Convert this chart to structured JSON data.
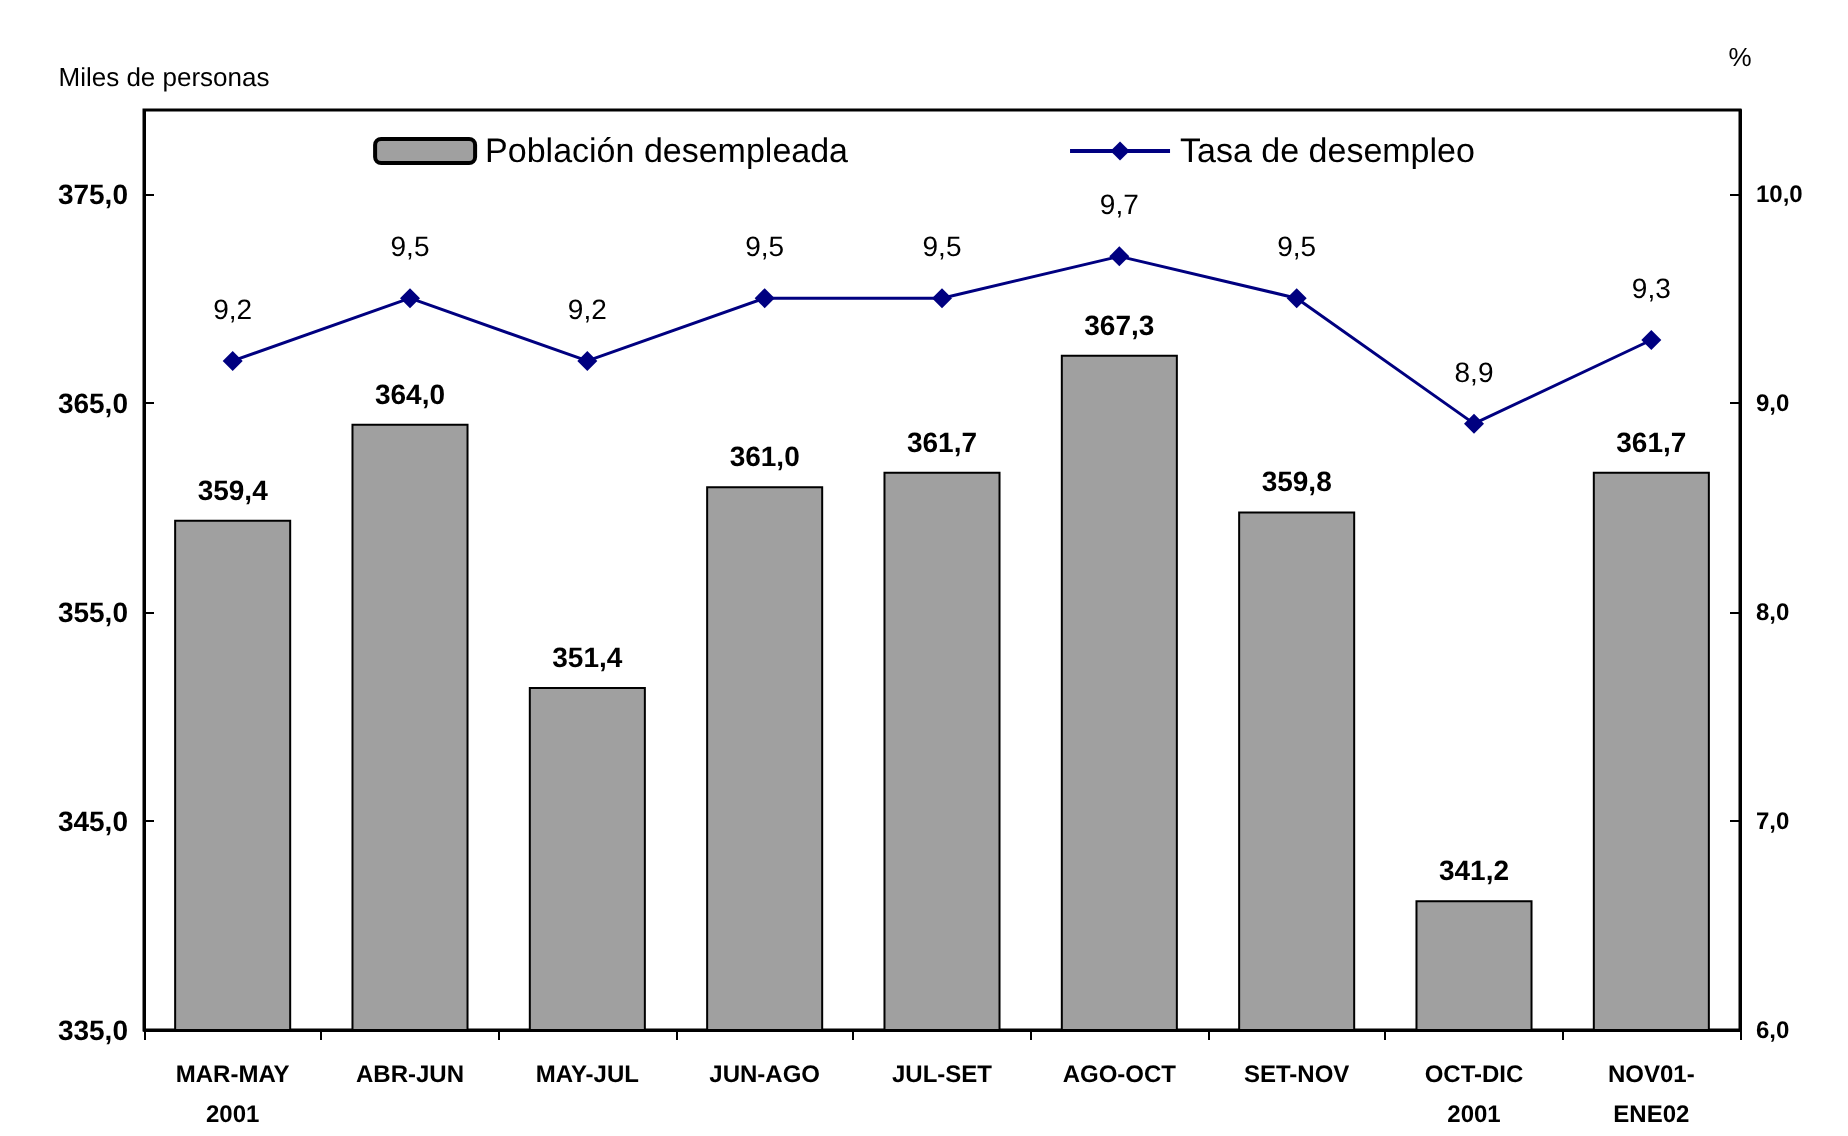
{
  "chart_data": {
    "type": "bar",
    "ylabel": "Miles de personas",
    "y2label": "%",
    "categories": [
      "MAR-MAY\n2001",
      "ABR-JUN",
      "MAY-JUL",
      "JUN-AGO",
      "JUL-SET",
      "AGO-OCT",
      "SET-NOV",
      "OCT-DIC\n2001",
      "NOV01-\nENE02"
    ],
    "series": [
      {
        "name": "Población desempleada",
        "color": "#a0a0a0",
        "values": [
          359.4,
          364.0,
          351.4,
          361.0,
          361.7,
          367.3,
          359.8,
          341.2,
          361.7
        ],
        "value_labels": [
          "359,4",
          "364,0",
          "351,4",
          "361,0",
          "361,7",
          "367,3",
          "359,8",
          "341,2",
          "361,7"
        ]
      },
      {
        "name": "Tasa de desempleo",
        "type": "line",
        "axis": "y2",
        "color": "#000080",
        "values": [
          9.2,
          9.5,
          9.2,
          9.5,
          9.5,
          9.7,
          9.5,
          8.9,
          9.3
        ],
        "value_labels": [
          "9,2",
          "9,5",
          "9,2",
          "9,5",
          "9,5",
          "9,7",
          "9,5",
          "8,9",
          "9,3"
        ]
      }
    ],
    "ylim": [
      335,
      379
    ],
    "yticks": [
      {
        "value": 335,
        "label": "335,0"
      },
      {
        "value": 345,
        "label": "345,0"
      },
      {
        "value": 355,
        "label": "355,0"
      },
      {
        "value": 365,
        "label": "365,0"
      },
      {
        "value": 375,
        "label": "375,0"
      }
    ],
    "y2lim": [
      6,
      10.4
    ],
    "y2ticks": [
      {
        "value": 6,
        "label": "6,0"
      },
      {
        "value": 7,
        "label": "7,0"
      },
      {
        "value": 8,
        "label": "8,0"
      },
      {
        "value": 9,
        "label": "9,0"
      },
      {
        "value": 10,
        "label": "10,0"
      }
    ],
    "legend": "top",
    "marker": "diamond",
    "line_style": "solid"
  }
}
